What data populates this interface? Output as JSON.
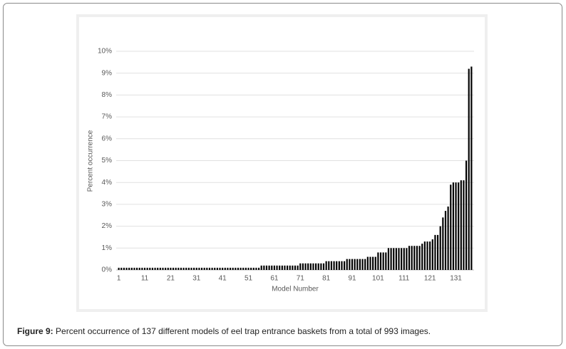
{
  "chart_data": {
    "type": "bar",
    "color": "#000000",
    "grid": true,
    "xlabel": "Model Number",
    "ylabel": "Percent occurrence",
    "x": [
      1,
      2,
      3,
      4,
      5,
      6,
      7,
      8,
      9,
      10,
      11,
      12,
      13,
      14,
      15,
      16,
      17,
      18,
      19,
      20,
      21,
      22,
      23,
      24,
      25,
      26,
      27,
      28,
      29,
      30,
      31,
      32,
      33,
      34,
      35,
      36,
      37,
      38,
      39,
      40,
      41,
      42,
      43,
      44,
      45,
      46,
      47,
      48,
      49,
      50,
      51,
      52,
      53,
      54,
      55,
      56,
      57,
      58,
      59,
      60,
      61,
      62,
      63,
      64,
      65,
      66,
      67,
      68,
      69,
      70,
      71,
      72,
      73,
      74,
      75,
      76,
      77,
      78,
      79,
      80,
      81,
      82,
      83,
      84,
      85,
      86,
      87,
      88,
      89,
      90,
      91,
      92,
      93,
      94,
      95,
      96,
      97,
      98,
      99,
      100,
      101,
      102,
      103,
      104,
      105,
      106,
      107,
      108,
      109,
      110,
      111,
      112,
      113,
      114,
      115,
      116,
      117,
      118,
      119,
      120,
      121,
      122,
      123,
      124,
      125,
      126,
      127,
      128,
      129,
      130,
      131,
      132,
      133,
      134,
      135,
      136,
      137
    ],
    "values": [
      0.1,
      0.1,
      0.1,
      0.1,
      0.1,
      0.1,
      0.1,
      0.1,
      0.1,
      0.1,
      0.1,
      0.1,
      0.1,
      0.1,
      0.1,
      0.1,
      0.1,
      0.1,
      0.1,
      0.1,
      0.1,
      0.1,
      0.1,
      0.1,
      0.1,
      0.1,
      0.1,
      0.1,
      0.1,
      0.1,
      0.1,
      0.1,
      0.1,
      0.1,
      0.1,
      0.1,
      0.1,
      0.1,
      0.1,
      0.1,
      0.1,
      0.1,
      0.1,
      0.1,
      0.1,
      0.1,
      0.1,
      0.1,
      0.1,
      0.1,
      0.1,
      0.1,
      0.1,
      0.1,
      0.1,
      0.2,
      0.2,
      0.2,
      0.2,
      0.2,
      0.2,
      0.2,
      0.2,
      0.2,
      0.2,
      0.2,
      0.2,
      0.2,
      0.2,
      0.2,
      0.3,
      0.3,
      0.3,
      0.3,
      0.3,
      0.3,
      0.3,
      0.3,
      0.3,
      0.3,
      0.4,
      0.4,
      0.4,
      0.4,
      0.4,
      0.4,
      0.4,
      0.4,
      0.5,
      0.5,
      0.5,
      0.5,
      0.5,
      0.5,
      0.5,
      0.5,
      0.6,
      0.6,
      0.6,
      0.6,
      0.8,
      0.8,
      0.8,
      0.8,
      1.0,
      1.0,
      1.0,
      1.0,
      1.0,
      1.0,
      1.0,
      1.0,
      1.1,
      1.1,
      1.1,
      1.1,
      1.1,
      1.2,
      1.3,
      1.3,
      1.3,
      1.4,
      1.6,
      1.6,
      2.0,
      2.4,
      2.7,
      2.9,
      3.9,
      4.0,
      4.0,
      4.0,
      4.1,
      4.1,
      5.0,
      9.2,
      9.3
    ],
    "xlim": [
      0,
      138
    ],
    "xticks": [
      1,
      11,
      21,
      31,
      41,
      51,
      61,
      71,
      81,
      91,
      101,
      111,
      121,
      131
    ],
    "ylim": [
      0,
      10
    ],
    "yticks": [
      {
        "value": 0,
        "label": "0%"
      },
      {
        "value": 1,
        "label": "1%"
      },
      {
        "value": 2,
        "label": "2%"
      },
      {
        "value": 3,
        "label": "3%"
      },
      {
        "value": 4,
        "label": "4%"
      },
      {
        "value": 5,
        "label": "5%"
      },
      {
        "value": 6,
        "label": "6%"
      },
      {
        "value": 7,
        "label": "7%"
      },
      {
        "value": 8,
        "label": "8%"
      },
      {
        "value": 9,
        "label": "9%"
      },
      {
        "value": 10,
        "label": "10%"
      }
    ]
  },
  "caption": {
    "label": "Figure 9:",
    "text": "Percent occurrence of 137 different models of eel trap entrance baskets from a total of 993 images."
  }
}
